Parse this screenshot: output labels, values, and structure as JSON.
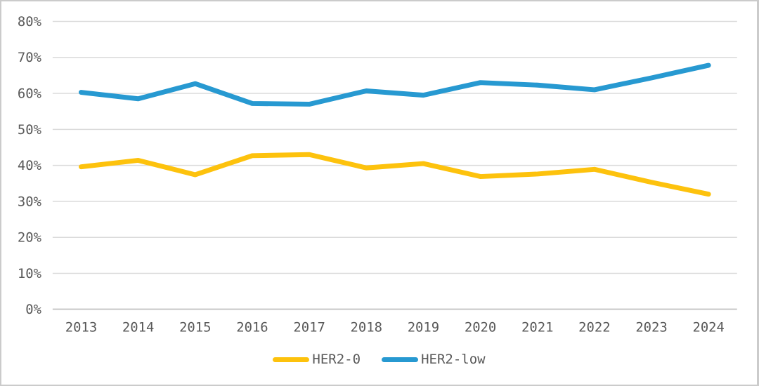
{
  "window": {
    "background": "#ffffff",
    "border_color": "#cbcbcb"
  },
  "chart_data": {
    "type": "line",
    "title": "",
    "xlabel": "",
    "ylabel": "",
    "categories": [
      "2013",
      "2014",
      "2015",
      "2016",
      "2017",
      "2018",
      "2019",
      "2020",
      "2021",
      "2022",
      "2023",
      "2024"
    ],
    "series": [
      {
        "name": "HER2-0",
        "color": "#FDC20D",
        "values": [
          39.6,
          41.4,
          37.4,
          42.7,
          43.0,
          39.3,
          40.5,
          36.9,
          37.6,
          38.9,
          35.3,
          32.0
        ]
      },
      {
        "name": "HER2-low",
        "color": "#2799D1",
        "values": [
          60.3,
          58.5,
          62.7,
          57.2,
          57.0,
          60.7,
          59.5,
          63.0,
          62.3,
          61.0,
          64.3,
          67.8
        ]
      }
    ],
    "ylim": [
      0,
      80
    ],
    "y_tick_values": [
      0,
      10,
      20,
      30,
      40,
      50,
      60,
      70,
      80
    ],
    "y_tick_labels": [
      "0%",
      "10%",
      "20%",
      "30%",
      "40%",
      "50%",
      "60%",
      "70%",
      "80%"
    ],
    "grid": "horizontal",
    "gridline_color": "#DADADA",
    "axis_line_color": "#D2D2D2",
    "tick_label_color": "#595959",
    "line_width": 7,
    "legend_position": "bottom-center"
  }
}
